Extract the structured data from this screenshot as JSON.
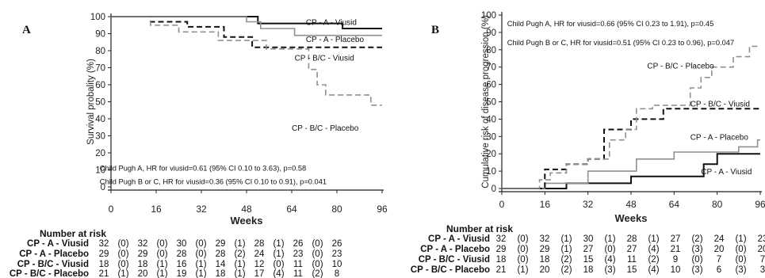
{
  "figure": {
    "panels": [
      {
        "panel_label": "A",
        "chart_data": {
          "type": "line",
          "step": true,
          "ylabel": "Survival probality (%)",
          "xlabel": "Weeks",
          "xlim": [
            0,
            96
          ],
          "ylim": [
            0,
            100
          ],
          "x_ticks": [
            0,
            16,
            32,
            48,
            64,
            80,
            96
          ],
          "y_ticks": [
            0,
            10,
            20,
            30,
            40,
            50,
            60,
            70,
            80,
            90,
            100
          ],
          "series": [
            {
              "name": "CP - A - Viusid",
              "color": "#111111",
              "dash": "solid",
              "width": 2.0,
              "points": [
                [
                  0,
                  100
                ],
                [
                  52,
                  100
                ],
                [
                  52,
                  96
                ],
                [
                  82,
                  96
                ],
                [
                  82,
                  93
                ],
                [
                  96,
                  93
                ]
              ]
            },
            {
              "name": "CP - A - Placebo",
              "color": "#909090",
              "dash": "solid",
              "width": 1.6,
              "points": [
                [
                  0,
                  100
                ],
                [
                  48,
                  100
                ],
                [
                  48,
                  97
                ],
                [
                  53,
                  97
                ],
                [
                  53,
                  93
                ],
                [
                  65,
                  93
                ],
                [
                  65,
                  89
                ],
                [
                  96,
                  89
                ]
              ]
            },
            {
              "name": "CP - B/C - Viusid",
              "color": "#111111",
              "dash": "dashed",
              "width": 2.0,
              "points": [
                [
                  0,
                  100
                ],
                [
                  14,
                  100
                ],
                [
                  14,
                  97
                ],
                [
                  27,
                  97
                ],
                [
                  27,
                  94
                ],
                [
                  40,
                  94
                ],
                [
                  40,
                  88
                ],
                [
                  50,
                  88
                ],
                [
                  50,
                  82
                ],
                [
                  96,
                  82
                ]
              ]
            },
            {
              "name": "CP - B/C - Placebo",
              "color": "#909090",
              "dash": "dashed",
              "width": 1.6,
              "points": [
                [
                  0,
                  100
                ],
                [
                  14,
                  100
                ],
                [
                  14,
                  95
                ],
                [
                  24,
                  95
                ],
                [
                  24,
                  91
                ],
                [
                  38,
                  91
                ],
                [
                  38,
                  86
                ],
                [
                  55,
                  86
                ],
                [
                  55,
                  81
                ],
                [
                  70,
                  81
                ],
                [
                  70,
                  69
                ],
                [
                  73,
                  69
                ],
                [
                  73,
                  60
                ],
                [
                  76,
                  60
                ],
                [
                  76,
                  54
                ],
                [
                  92,
                  54
                ],
                [
                  92,
                  48
                ],
                [
                  96,
                  48
                ]
              ]
            }
          ],
          "series_labels": [
            {
              "text": "CP - A - Viusid",
              "x": 69,
              "y": 97
            },
            {
              "text": "CP - A - Placebo",
              "x": 69,
              "y": 87
            },
            {
              "text": "CP - B/C - Viusid",
              "x": 65,
              "y": 76
            },
            {
              "text": "CP - B/C - Placebo",
              "x": 64,
              "y": 35
            }
          ],
          "annotations": [
            {
              "text": "Child Pugh A, HR for viusid=0.61 (95% CI 0.10 to 3.63), p=0.58",
              "x": -4,
              "y": 11
            },
            {
              "text": "Child Pugh B or C, HR for viusid=0.36 (95% CI 0.10 to 0.91), p=0.041",
              "x": -4,
              "y": 3
            }
          ]
        },
        "risk_table": {
          "title": "Number at risk",
          "rows": [
            {
              "label": "CP - A - Viusid",
              "values": [
                "32",
                "(0)",
                "32",
                "(0)",
                "30",
                "(0)",
                "29",
                "(1)",
                "28",
                "(1)",
                "26",
                "(0)",
                "26"
              ]
            },
            {
              "label": "CP - A - Placebo",
              "values": [
                "29",
                "(0)",
                "29",
                "(0)",
                "28",
                "(0)",
                "28",
                "(2)",
                "24",
                "(1)",
                "23",
                "(0)",
                "23"
              ]
            },
            {
              "label": "CP - B/C - Viusid",
              "values": [
                "18",
                "(0)",
                "18",
                "(1)",
                "16",
                "(1)",
                "14",
                "(1)",
                "12",
                "(0)",
                "11",
                "(0)",
                "10"
              ]
            },
            {
              "label": "CP - B/C - Placebo",
              "values": [
                "21",
                "(1)",
                "20",
                "(1)",
                "19",
                "(1)",
                "18",
                "(1)",
                "17",
                "(4)",
                "11",
                "(2)",
                "8"
              ]
            }
          ]
        }
      },
      {
        "panel_label": "B",
        "chart_data": {
          "type": "line",
          "step": true,
          "ylabel": "Cumulative risk of disease progression (%)",
          "xlabel": "Weeks",
          "xlim": [
            0,
            96
          ],
          "ylim": [
            0,
            100
          ],
          "x_ticks": [
            0,
            16,
            32,
            48,
            64,
            80,
            96
          ],
          "y_ticks": [
            0,
            10,
            20,
            30,
            40,
            50,
            60,
            70,
            80,
            90,
            100
          ],
          "series": [
            {
              "name": "CP - A - Viusid",
              "color": "#111111",
              "dash": "solid",
              "width": 2.0,
              "points": [
                [
                  0,
                  0
                ],
                [
                  24,
                  0
                ],
                [
                  24,
                  3
                ],
                [
                  48,
                  3
                ],
                [
                  48,
                  7
                ],
                [
                  75,
                  7
                ],
                [
                  75,
                  14
                ],
                [
                  80,
                  14
                ],
                [
                  80,
                  20
                ],
                [
                  96,
                  20
                ]
              ]
            },
            {
              "name": "CP - A - Placebo",
              "color": "#909090",
              "dash": "solid",
              "width": 1.6,
              "points": [
                [
                  0,
                  0
                ],
                [
                  16,
                  0
                ],
                [
                  16,
                  3
                ],
                [
                  32,
                  3
                ],
                [
                  32,
                  10
                ],
                [
                  50,
                  10
                ],
                [
                  50,
                  17
                ],
                [
                  64,
                  17
                ],
                [
                  64,
                  21
                ],
                [
                  88,
                  21
                ],
                [
                  88,
                  24
                ],
                [
                  95,
                  24
                ],
                [
                  95,
                  28
                ],
                [
                  96,
                  28
                ]
              ]
            },
            {
              "name": "CP - B/C - Viusid",
              "color": "#111111",
              "dash": "dashed",
              "width": 2.0,
              "points": [
                [
                  0,
                  0
                ],
                [
                  16,
                  0
                ],
                [
                  16,
                  11
                ],
                [
                  24,
                  11
                ],
                [
                  24,
                  14
                ],
                [
                  32,
                  14
                ],
                [
                  32,
                  17
                ],
                [
                  38,
                  17
                ],
                [
                  38,
                  34
                ],
                [
                  48,
                  34
                ],
                [
                  48,
                  40
                ],
                [
                  60,
                  40
                ],
                [
                  60,
                  46
                ],
                [
                  96,
                  46
                ]
              ]
            },
            {
              "name": "CP - B/C - Placebo",
              "color": "#909090",
              "dash": "dashed",
              "width": 1.6,
              "points": [
                [
                  0,
                  0
                ],
                [
                  14,
                  0
                ],
                [
                  14,
                  5
                ],
                [
                  18,
                  5
                ],
                [
                  18,
                  9
                ],
                [
                  24,
                  9
                ],
                [
                  24,
                  14
                ],
                [
                  32,
                  14
                ],
                [
                  32,
                  17
                ],
                [
                  40,
                  17
                ],
                [
                  40,
                  28
                ],
                [
                  46,
                  28
                ],
                [
                  46,
                  34
                ],
                [
                  50,
                  34
                ],
                [
                  50,
                  46
                ],
                [
                  56,
                  46
                ],
                [
                  56,
                  48
                ],
                [
                  70,
                  48
                ],
                [
                  70,
                  58
                ],
                [
                  74,
                  58
                ],
                [
                  74,
                  64
                ],
                [
                  78,
                  64
                ],
                [
                  78,
                  70
                ],
                [
                  86,
                  70
                ],
                [
                  86,
                  76
                ],
                [
                  92,
                  76
                ],
                [
                  92,
                  82
                ],
                [
                  96,
                  82
                ]
              ]
            }
          ],
          "series_labels": [
            {
              "text": "CP - B/C - Placebo",
              "x": 54,
              "y": 71
            },
            {
              "text": "CP - B/C - Viusid",
              "x": 70,
              "y": 49
            },
            {
              "text": "CP - A - Placebo",
              "x": 70,
              "y": 30
            },
            {
              "text": "CP - A - Viusid",
              "x": 74,
              "y": 10
            }
          ],
          "annotations": [
            {
              "text": "Child Pugh A, HR for viusid=0.66 (95% CI 0.23 to 1.91), p=0.45",
              "x": 2,
              "y": 95
            },
            {
              "text": "Child Pugh B or C, HR for viusid=0.51 (95% CI 0.23 to 0.96), p=0.047",
              "x": 2,
              "y": 84
            }
          ]
        },
        "risk_table": {
          "title": "Number at risk",
          "rows": [
            {
              "label": "CP - A - Viusid",
              "values": [
                "32",
                "(0)",
                "32",
                "(1)",
                "30",
                "(1)",
                "28",
                "(1)",
                "27",
                "(2)",
                "24",
                "(1)",
                "23"
              ]
            },
            {
              "label": "CP - A - Placebo",
              "values": [
                "29",
                "(0)",
                "29",
                "(1)",
                "27",
                "(0)",
                "27",
                "(4)",
                "21",
                "(3)",
                "20",
                "(0)",
                "20"
              ]
            },
            {
              "label": "CP - B/C - Viusid",
              "values": [
                "18",
                "(0)",
                "18",
                "(2)",
                "15",
                "(4)",
                "11",
                "(2)",
                "9",
                "(0)",
                "7",
                "(0)",
                "7"
              ]
            },
            {
              "label": "CP - B/C - Placebo",
              "values": [
                "21",
                "(1)",
                "20",
                "(2)",
                "18",
                "(3)",
                "15",
                "(4)",
                "10",
                "(3)",
                "6",
                "(3)",
                "3"
              ]
            }
          ]
        }
      }
    ]
  }
}
